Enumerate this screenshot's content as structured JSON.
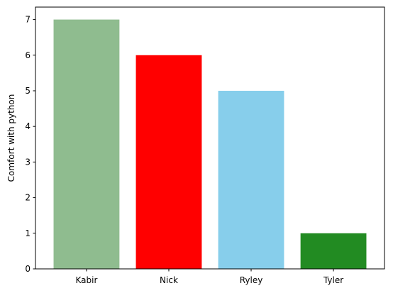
{
  "chart_data": {
    "type": "bar",
    "categories": [
      "Kabir",
      "Nick",
      "Ryley",
      "Tyler"
    ],
    "values": [
      7,
      6,
      5,
      1
    ],
    "colors": [
      "#8fbc8f",
      "#ff0000",
      "#87ceeb",
      "#228b22"
    ],
    "title": "",
    "xlabel": "",
    "ylabel": "Comfort with python",
    "ylim": [
      0,
      7.35
    ],
    "yticks": [
      0,
      1,
      2,
      3,
      4,
      5,
      6,
      7
    ],
    "grid": false
  }
}
